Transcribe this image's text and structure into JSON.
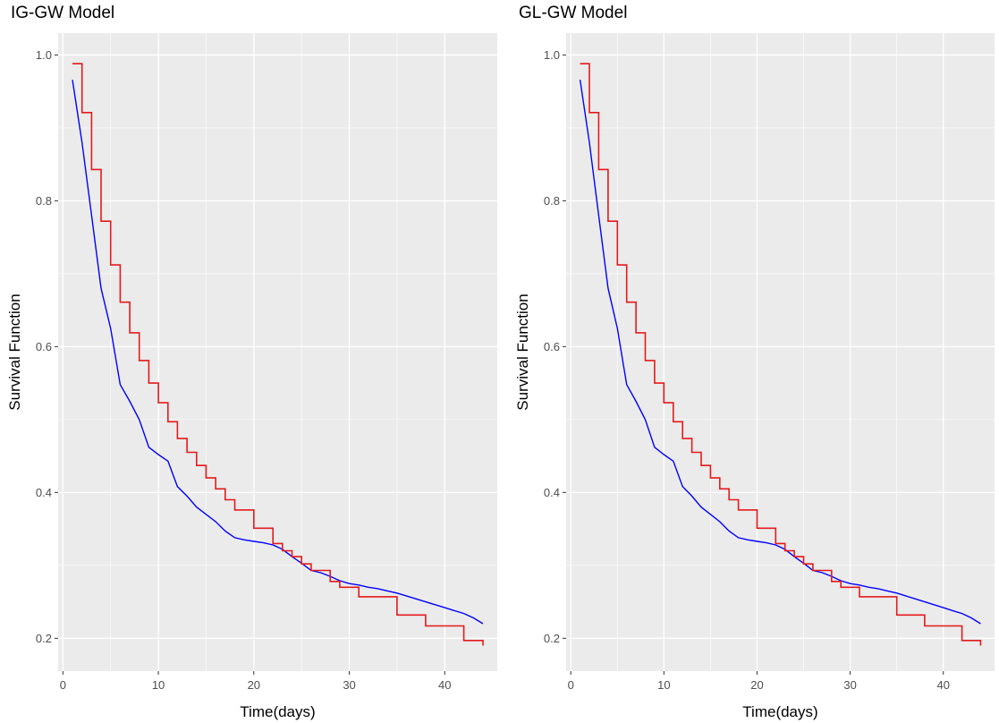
{
  "chart_data": [
    {
      "type": "line",
      "title": "IG-GW Model",
      "xlabel": "Time(days)",
      "ylabel": "Survival Function",
      "xlim": [
        -0.5,
        45.5
      ],
      "ylim": [
        0.155,
        1.03
      ],
      "x_ticks": [
        0,
        10,
        20,
        30,
        40
      ],
      "y_ticks": [
        0.2,
        0.4,
        0.6,
        0.8,
        1.0
      ],
      "x_tick_labels": [
        "0",
        "10",
        "20",
        "30",
        "40"
      ],
      "y_tick_labels": [
        "0.2",
        "0.4",
        "0.6",
        "0.8",
        "1.0"
      ],
      "grid": true,
      "series": [
        {
          "color": "#0000ff",
          "style": "line",
          "x": [
            1,
            2,
            3,
            4,
            5,
            6,
            7,
            8,
            9,
            10,
            11,
            12,
            13,
            14,
            15,
            16,
            17,
            18,
            19,
            20,
            21,
            22,
            23,
            24,
            25,
            26,
            27,
            28,
            29,
            30,
            31,
            32,
            33,
            34,
            35,
            36,
            37,
            38,
            39,
            40,
            41,
            42,
            43,
            44
          ],
          "y": [
            0.966,
            0.88,
            0.78,
            0.68,
            0.625,
            0.548,
            0.525,
            0.5,
            0.462,
            0.452,
            0.443,
            0.408,
            0.395,
            0.38,
            0.37,
            0.36,
            0.347,
            0.338,
            0.335,
            0.333,
            0.331,
            0.328,
            0.322,
            0.312,
            0.303,
            0.293,
            0.29,
            0.285,
            0.279,
            0.275,
            0.273,
            0.27,
            0.268,
            0.265,
            0.262,
            0.258,
            0.254,
            0.25,
            0.246,
            0.242,
            0.238,
            0.234,
            0.228,
            0.22
          ]
        },
        {
          "color": "#e41a1c",
          "style": "step",
          "x": [
            1,
            2,
            3,
            4,
            5,
            6,
            7,
            8,
            9,
            10,
            11,
            12,
            13,
            14,
            15,
            16,
            17,
            18,
            20,
            22,
            23,
            24,
            25,
            26,
            28,
            29,
            31,
            35,
            38,
            42,
            44
          ],
          "y": [
            0.988,
            0.921,
            0.843,
            0.772,
            0.712,
            0.661,
            0.619,
            0.581,
            0.55,
            0.523,
            0.497,
            0.474,
            0.455,
            0.437,
            0.42,
            0.405,
            0.39,
            0.376,
            0.351,
            0.33,
            0.32,
            0.312,
            0.302,
            0.293,
            0.278,
            0.27,
            0.257,
            0.232,
            0.217,
            0.197,
            0.19
          ]
        }
      ]
    },
    {
      "type": "line",
      "title": "GL-GW Model",
      "xlabel": "Time(days)",
      "ylabel": "Survival Function",
      "xlim": [
        -0.5,
        45.5
      ],
      "ylim": [
        0.155,
        1.03
      ],
      "x_ticks": [
        0,
        10,
        20,
        30,
        40
      ],
      "y_ticks": [
        0.2,
        0.4,
        0.6,
        0.8,
        1.0
      ],
      "x_tick_labels": [
        "0",
        "10",
        "20",
        "30",
        "40"
      ],
      "y_tick_labels": [
        "0.2",
        "0.4",
        "0.6",
        "0.8",
        "1.0"
      ],
      "grid": true,
      "series": [
        {
          "color": "#0000ff",
          "style": "line",
          "x": [
            1,
            2,
            3,
            4,
            5,
            6,
            7,
            8,
            9,
            10,
            11,
            12,
            13,
            14,
            15,
            16,
            17,
            18,
            19,
            20,
            21,
            22,
            23,
            24,
            25,
            26,
            27,
            28,
            29,
            30,
            31,
            32,
            33,
            34,
            35,
            36,
            37,
            38,
            39,
            40,
            41,
            42,
            43,
            44
          ],
          "y": [
            0.966,
            0.88,
            0.78,
            0.68,
            0.625,
            0.548,
            0.525,
            0.5,
            0.462,
            0.452,
            0.443,
            0.408,
            0.395,
            0.38,
            0.37,
            0.36,
            0.347,
            0.338,
            0.335,
            0.333,
            0.331,
            0.328,
            0.322,
            0.312,
            0.303,
            0.293,
            0.29,
            0.285,
            0.279,
            0.275,
            0.273,
            0.27,
            0.268,
            0.265,
            0.262,
            0.258,
            0.254,
            0.25,
            0.246,
            0.242,
            0.238,
            0.234,
            0.228,
            0.22
          ]
        },
        {
          "color": "#e41a1c",
          "style": "step",
          "x": [
            1,
            2,
            3,
            4,
            5,
            6,
            7,
            8,
            9,
            10,
            11,
            12,
            13,
            14,
            15,
            16,
            17,
            18,
            20,
            22,
            23,
            24,
            25,
            26,
            28,
            29,
            31,
            35,
            38,
            42,
            44
          ],
          "y": [
            0.988,
            0.921,
            0.843,
            0.772,
            0.712,
            0.661,
            0.619,
            0.581,
            0.55,
            0.523,
            0.497,
            0.474,
            0.455,
            0.437,
            0.42,
            0.405,
            0.39,
            0.376,
            0.351,
            0.33,
            0.32,
            0.312,
            0.302,
            0.293,
            0.278,
            0.27,
            0.257,
            0.232,
            0.217,
            0.197,
            0.19
          ]
        }
      ]
    }
  ]
}
